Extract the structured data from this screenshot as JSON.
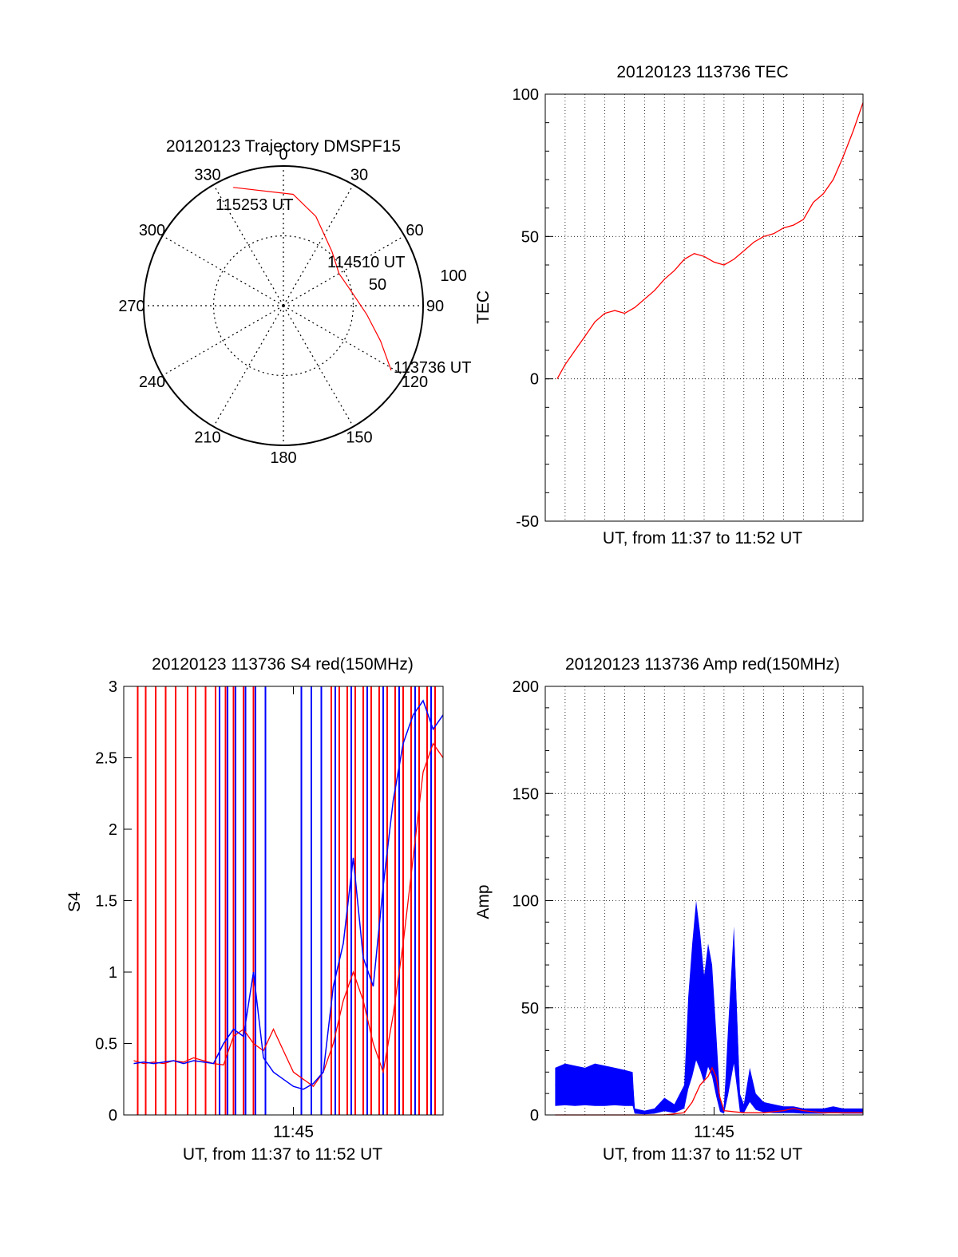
{
  "colors": {
    "red_series": "#ff0000",
    "blue_series": "#0000ff",
    "axis": "#000000",
    "grid": "#000000"
  },
  "chart_data": [
    {
      "id": "trajectory",
      "type": "polar",
      "title": "20120123 Trajectory DMSPF15",
      "angle_labels": [
        "0",
        "30",
        "60",
        "90",
        "120",
        "150",
        "180",
        "210",
        "240",
        "270",
        "300",
        "330"
      ],
      "radial_labels": [
        "50",
        "100"
      ],
      "rlim": [
        0,
        100
      ],
      "grid": true,
      "annotations": [
        "115253 UT",
        "114510 UT",
        "113736 UT"
      ],
      "series": [
        {
          "color": "red",
          "points": [
            {
              "time": "113736 UT",
              "azimuth": 121,
              "radius": 90
            },
            {
              "azimuth": 110,
              "radius": 74
            },
            {
              "azimuth": 96,
              "radius": 60
            },
            {
              "time": "114510 UT",
              "azimuth": 79,
              "radius": 50
            },
            {
              "azimuth": 60,
              "radius": 46
            },
            {
              "azimuth": 42,
              "radius": 52
            },
            {
              "azimuth": 20,
              "radius": 68
            },
            {
              "azimuth": 5,
              "radius": 80
            },
            {
              "time": "115253 UT",
              "azimuth": 337,
              "radius": 92
            }
          ]
        }
      ]
    },
    {
      "id": "tec",
      "type": "line",
      "title": "20120123 113736 TEC",
      "xlabel": "UT, from 11:37 to 11:52 UT",
      "ylabel": "TEC",
      "xlim": [
        0,
        16
      ],
      "ylim": [
        -50,
        100
      ],
      "yticks": [
        "100",
        "50",
        "0",
        "-50"
      ],
      "grid": true,
      "series": [
        {
          "color": "red",
          "x": [
            0.6,
            1.0,
            1.5,
            2.0,
            2.5,
            3.0,
            3.5,
            4.0,
            4.5,
            5.0,
            5.5,
            6.0,
            6.5,
            7.0,
            7.5,
            8.0,
            8.5,
            9.0,
            9.5,
            10.0,
            10.5,
            11.0,
            11.5,
            12.0,
            12.5,
            13.0,
            13.5,
            14.0,
            14.5,
            15.0,
            15.5,
            16.0
          ],
          "y": [
            0,
            5,
            10,
            15,
            20,
            23,
            24,
            23,
            25,
            28,
            31,
            35,
            38,
            42,
            44,
            43,
            41,
            40,
            42,
            45,
            48,
            50,
            51,
            53,
            54,
            56,
            62,
            65,
            70,
            78,
            87,
            97
          ]
        }
      ]
    },
    {
      "id": "s4",
      "type": "line",
      "title": "20120123 113736 S4 red(150MHz)",
      "xlabel": "UT, from 11:37 to 11:52 UT",
      "ylabel": "S4",
      "xlim": [
        0,
        16
      ],
      "ylim": [
        0,
        3
      ],
      "yticks": [
        "3",
        "2.5",
        "2",
        "1.5",
        "1",
        "0.5",
        "0"
      ],
      "xticks": [
        {
          "value": 8.5,
          "label": "11:45"
        }
      ],
      "series": [
        {
          "color": "red",
          "x": [
            0.5,
            1.0,
            1.5,
            2.0,
            2.5,
            3.0,
            3.5,
            4.0,
            4.5,
            5.0,
            5.5,
            6.0,
            6.5,
            7.0,
            7.5,
            8.0,
            8.5,
            9.0,
            9.5,
            10.0,
            10.5,
            11.0,
            11.5,
            12.0,
            12.5,
            13.0,
            13.5,
            14.0,
            14.5,
            15.0,
            15.5,
            16.0
          ],
          "y": [
            0.38,
            0.36,
            0.37,
            0.36,
            0.38,
            0.37,
            0.4,
            0.38,
            0.36,
            0.35,
            0.55,
            0.6,
            0.5,
            0.45,
            0.6,
            0.45,
            0.3,
            0.25,
            0.2,
            0.3,
            0.5,
            0.8,
            1.0,
            0.8,
            0.5,
            0.3,
            0.7,
            1.2,
            1.8,
            2.4,
            2.6,
            2.5
          ],
          "spikes_x": [
            0.7,
            1.1,
            1.6,
            2.1,
            2.6,
            3.2,
            3.6,
            4.1,
            4.6,
            5.1,
            5.5,
            6.0,
            6.5,
            10.4,
            10.8,
            11.2,
            11.6,
            12.0,
            12.4,
            12.8,
            13.2,
            13.6,
            14.0,
            14.4,
            14.8,
            15.2,
            15.6
          ]
        },
        {
          "color": "blue",
          "x": [
            0.5,
            1.0,
            1.5,
            2.0,
            2.5,
            3.0,
            3.5,
            4.0,
            4.5,
            5.0,
            5.5,
            6.0,
            6.5,
            7.0,
            7.5,
            8.0,
            8.5,
            9.0,
            9.5,
            10.0,
            10.5,
            11.0,
            11.5,
            12.0,
            12.5,
            13.0,
            13.5,
            14.0,
            14.5,
            15.0,
            15.5,
            16.0
          ],
          "y": [
            0.36,
            0.37,
            0.36,
            0.37,
            0.38,
            0.36,
            0.38,
            0.37,
            0.36,
            0.5,
            0.6,
            0.55,
            1.0,
            0.4,
            0.3,
            0.25,
            0.2,
            0.18,
            0.22,
            0.3,
            0.9,
            1.2,
            1.8,
            1.1,
            0.9,
            1.6,
            2.2,
            2.6,
            2.8,
            2.9,
            2.7,
            2.8
          ],
          "spikes_x": [
            4.8,
            5.2,
            5.6,
            6.1,
            6.6,
            7.1,
            8.9,
            9.4,
            9.9,
            10.6,
            11.4,
            12.2,
            13.0,
            13.8,
            14.6,
            15.4
          ]
        }
      ]
    },
    {
      "id": "amp",
      "type": "line",
      "title": "20120123 113736 Amp red(150MHz)",
      "xlabel": "UT, from 11:37 to 11:52 UT",
      "ylabel": "Amp",
      "xlim": [
        0,
        16
      ],
      "ylim": [
        0,
        200
      ],
      "yticks": [
        "200",
        "150",
        "100",
        "50",
        "0"
      ],
      "xticks": [
        {
          "value": 8.5,
          "label": "11:45"
        }
      ],
      "grid": true,
      "series": [
        {
          "color": "blue",
          "x": [
            0.5,
            1.0,
            1.5,
            2.0,
            2.5,
            3.0,
            3.5,
            4.0,
            4.4,
            4.5,
            5.0,
            5.5,
            6.0,
            6.5,
            7.0,
            7.2,
            7.4,
            7.6,
            7.8,
            8.0,
            8.2,
            8.4,
            8.6,
            8.8,
            9.0,
            9.2,
            9.5,
            9.8,
            10.0,
            10.3,
            10.6,
            11.0,
            11.5,
            12.0,
            12.5,
            13.0,
            13.5,
            14.0,
            14.5,
            15.0,
            15.5,
            16.0
          ],
          "y": [
            14,
            15,
            14,
            15,
            14,
            14,
            15,
            14,
            14,
            2,
            1,
            2,
            6,
            3,
            10,
            40,
            60,
            85,
            70,
            50,
            75,
            60,
            30,
            5,
            2,
            30,
            80,
            5,
            3,
            20,
            8,
            4,
            3,
            3,
            3,
            2,
            2,
            2,
            3,
            2,
            2,
            2
          ],
          "band": [
            22,
            24,
            23,
            22,
            24,
            23,
            22,
            21,
            20,
            3,
            2,
            3,
            8,
            5,
            14,
            55,
            80,
            100,
            85,
            65,
            80,
            70,
            40,
            8,
            3,
            40,
            88,
            10,
            5,
            22,
            10,
            6,
            5,
            4,
            4,
            3,
            3,
            3,
            4,
            3,
            3,
            3
          ]
        },
        {
          "color": "red",
          "x": [
            0.5,
            1.0,
            2.0,
            3.0,
            4.0,
            5.0,
            6.0,
            7.0,
            7.4,
            7.6,
            7.8,
            8.0,
            8.2,
            8.4,
            8.6,
            8.8,
            9.0,
            10.0,
            11.0,
            12.0,
            12.5,
            13.0,
            14.0,
            15.0,
            16.0
          ],
          "y": [
            0,
            0,
            0,
            0,
            0,
            0,
            0,
            1,
            6,
            10,
            14,
            16,
            18,
            22,
            18,
            8,
            2,
            1,
            1,
            2,
            3,
            2,
            1,
            1,
            1
          ]
        }
      ]
    }
  ]
}
